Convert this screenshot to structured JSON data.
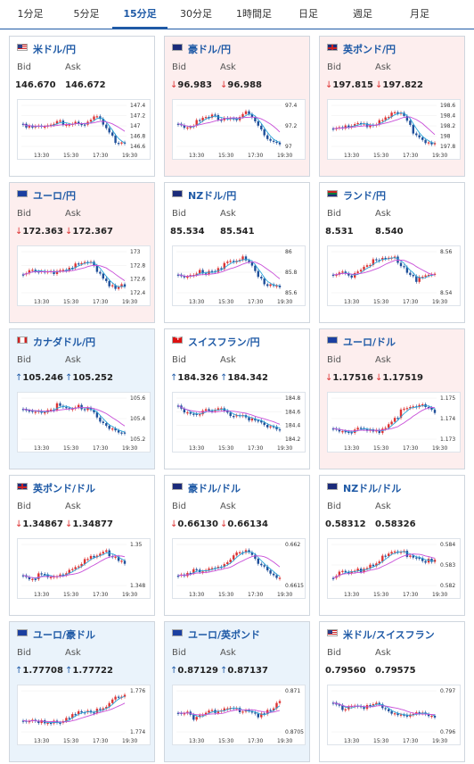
{
  "tabs": [
    {
      "label": "1分足",
      "active": false
    },
    {
      "label": "5分足",
      "active": false
    },
    {
      "label": "15分足",
      "active": true
    },
    {
      "label": "30分足",
      "active": false
    },
    {
      "label": "1時間足",
      "active": false
    },
    {
      "label": "日足",
      "active": false
    },
    {
      "label": "週足",
      "active": false
    },
    {
      "label": "月足",
      "active": false
    }
  ],
  "bid_label": "Bid",
  "ask_label": "Ask",
  "x_ticks": [
    "13:30",
    "15:30",
    "17:30",
    "19:30"
  ],
  "cards": [
    {
      "title": "米ドル/円",
      "flag": "us",
      "state": "none",
      "dir": "",
      "bid": "146.670",
      "ask": "146.672",
      "y_ticks": [
        "147.4",
        "147.2",
        "147",
        "146.8",
        "146.6"
      ],
      "profile": [
        0.45,
        0.5,
        0.45,
        0.55,
        0.4,
        0.5,
        0.35,
        0.45,
        0.3,
        0.35,
        0.7,
        0.85,
        0.9
      ]
    },
    {
      "title": "豪ドル/円",
      "flag": "au",
      "state": "down",
      "dir": "down",
      "bid": "96.983",
      "ask": "96.988",
      "y_ticks": [
        "97.4",
        "97.2",
        "97"
      ],
      "profile": [
        0.4,
        0.5,
        0.45,
        0.35,
        0.3,
        0.3,
        0.25,
        0.3,
        0.2,
        0.4,
        0.7,
        0.85,
        0.9
      ]
    },
    {
      "title": "英ポンド/円",
      "flag": "uk",
      "state": "down",
      "dir": "down",
      "bid": "197.815",
      "ask": "197.822",
      "y_ticks": [
        "198.6",
        "198.4",
        "198.2",
        "198",
        "197.8"
      ],
      "profile": [
        0.55,
        0.5,
        0.6,
        0.45,
        0.5,
        0.4,
        0.3,
        0.25,
        0.2,
        0.5,
        0.75,
        0.85,
        0.9
      ]
    },
    {
      "title": "ユーロ/円",
      "flag": "eu",
      "state": "down",
      "dir": "down",
      "bid": "172.363",
      "ask": "172.367",
      "y_ticks": [
        "173",
        "172.8",
        "172.6",
        "172.4"
      ],
      "profile": [
        0.5,
        0.45,
        0.55,
        0.5,
        0.45,
        0.4,
        0.35,
        0.3,
        0.25,
        0.5,
        0.75,
        0.85,
        0.88
      ]
    },
    {
      "title": "NZドル/円",
      "flag": "nz",
      "state": "none",
      "dir": "",
      "bid": "85.534",
      "ask": "85.541",
      "y_ticks": [
        "86",
        "85.8",
        "85.6"
      ],
      "profile": [
        0.6,
        0.65,
        0.55,
        0.5,
        0.45,
        0.35,
        0.3,
        0.25,
        0.15,
        0.4,
        0.7,
        0.85,
        0.9
      ]
    },
    {
      "title": "ランド/円",
      "flag": "za",
      "state": "none",
      "dir": "",
      "bid": "8.531",
      "ask": "8.540",
      "y_ticks": [
        "8.56",
        "8.54"
      ],
      "profile": [
        0.6,
        0.55,
        0.65,
        0.4,
        0.3,
        0.25,
        0.2,
        0.15,
        0.3,
        0.5,
        0.7,
        0.6,
        0.55
      ]
    },
    {
      "title": "カナダドル/円",
      "flag": "ca",
      "state": "up",
      "dir": "up",
      "bid": "105.246",
      "ask": "105.252",
      "y_ticks": [
        "105.6",
        "105.4",
        "105.2"
      ],
      "profile": [
        0.3,
        0.35,
        0.3,
        0.25,
        0.2,
        0.25,
        0.3,
        0.2,
        0.25,
        0.5,
        0.75,
        0.85,
        0.85
      ]
    },
    {
      "title": "スイスフラン/円",
      "flag": "ch",
      "state": "none",
      "dir": "up",
      "bid": "184.326",
      "ask": "184.342",
      "y_ticks": [
        "184.8",
        "184.6",
        "184.4",
        "184.2"
      ],
      "profile": [
        0.25,
        0.3,
        0.35,
        0.3,
        0.35,
        0.3,
        0.4,
        0.35,
        0.45,
        0.55,
        0.7,
        0.75,
        0.7
      ]
    },
    {
      "title": "ユーロ/ドル",
      "flag": "eu",
      "state": "down",
      "dir": "down",
      "bid": "1.17516",
      "ask": "1.17519",
      "y_ticks": [
        "1.175",
        "1.174",
        "1.173"
      ],
      "profile": [
        0.7,
        0.75,
        0.8,
        0.75,
        0.8,
        0.85,
        0.7,
        0.5,
        0.35,
        0.3,
        0.25,
        0.2,
        0.3
      ]
    },
    {
      "title": "英ポンド/ドル",
      "flag": "uk",
      "state": "none",
      "dir": "down",
      "bid": "1.34867",
      "ask": "1.34877",
      "y_ticks": [
        "1.35",
        "1.348"
      ],
      "profile": [
        0.75,
        0.8,
        0.75,
        0.85,
        0.8,
        0.65,
        0.5,
        0.45,
        0.35,
        0.25,
        0.2,
        0.3,
        0.45
      ]
    },
    {
      "title": "豪ドル/ドル",
      "flag": "au",
      "state": "none",
      "dir": "down",
      "bid": "0.66130",
      "ask": "0.66134",
      "y_ticks": [
        "0.662",
        "0.6615"
      ],
      "profile": [
        0.7,
        0.75,
        0.65,
        0.7,
        0.55,
        0.5,
        0.35,
        0.25,
        0.2,
        0.35,
        0.5,
        0.7,
        0.85
      ]
    },
    {
      "title": "NZドル/ドル",
      "flag": "nz",
      "state": "none",
      "dir": "",
      "bid": "0.58312",
      "ask": "0.58326",
      "y_ticks": [
        "0.584",
        "0.583",
        "0.582"
      ],
      "profile": [
        0.8,
        0.7,
        0.75,
        0.65,
        0.5,
        0.45,
        0.3,
        0.25,
        0.2,
        0.25,
        0.3,
        0.4,
        0.45
      ]
    },
    {
      "title": "ユーロ/豪ドル",
      "flag": "eu",
      "state": "up",
      "dir": "up",
      "bid": "1.77708",
      "ask": "1.77722",
      "y_ticks": [
        "1.776",
        "1.774"
      ],
      "profile": [
        0.8,
        0.75,
        0.8,
        0.75,
        0.7,
        0.75,
        0.6,
        0.55,
        0.5,
        0.4,
        0.3,
        0.2,
        0.15
      ]
    },
    {
      "title": "ユーロ/英ポンド",
      "flag": "eu",
      "state": "up",
      "dir": "up",
      "bid": "0.87129",
      "ask": "0.87137",
      "y_ticks": [
        "0.871",
        "0.8705"
      ],
      "profile": [
        0.6,
        0.55,
        0.65,
        0.5,
        0.45,
        0.55,
        0.4,
        0.5,
        0.45,
        0.55,
        0.6,
        0.5,
        0.3
      ]
    },
    {
      "title": "米ドル/スイスフラン",
      "flag": "us",
      "state": "none",
      "dir": "",
      "bid": "0.79560",
      "ask": "0.79575",
      "y_ticks": [
        "0.797",
        "0.796"
      ],
      "profile": [
        0.35,
        0.4,
        0.35,
        0.3,
        0.4,
        0.35,
        0.45,
        0.5,
        0.55,
        0.6,
        0.55,
        0.65,
        0.6
      ]
    }
  ]
}
